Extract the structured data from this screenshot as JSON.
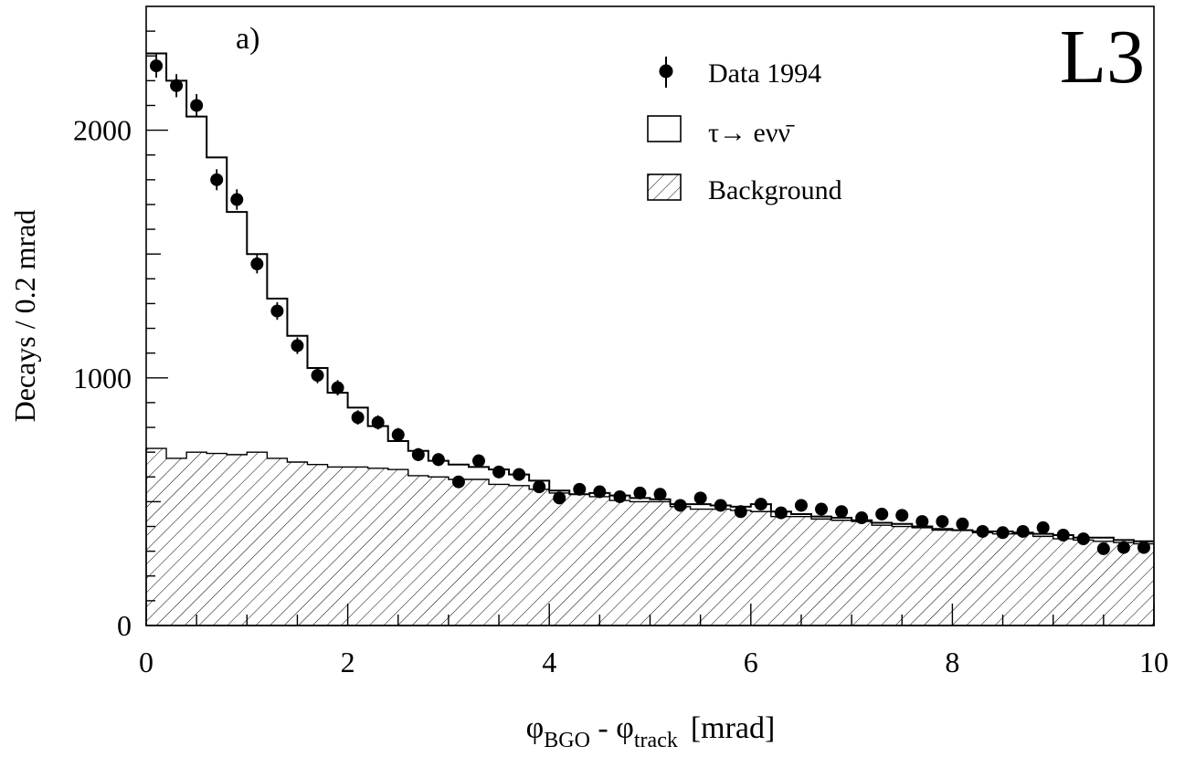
{
  "chart_data": {
    "type": "histogram",
    "panel_label": "a)",
    "experiment_label": "L3",
    "xlabel_main": "φ",
    "xlabel_sub1": "BGO",
    "xlabel_sep": " - φ",
    "xlabel_sub2": "track",
    "xlabel_unit": "[mrad]",
    "ylabel": "Decays / 0.2 mrad",
    "xlim": [
      0,
      10
    ],
    "ylim": [
      0,
      2500
    ],
    "x_ticks": [
      0,
      2,
      4,
      6,
      8,
      10
    ],
    "x_tick_labels": [
      "0",
      "2",
      "4",
      "6",
      "8",
      "10"
    ],
    "y_ticks": [
      0,
      1000,
      2000
    ],
    "y_tick_labels": [
      "0",
      "1000",
      "2000"
    ],
    "bin_width": 0.2,
    "legend": {
      "data": "Data 1994",
      "signal": "τ→ eνν̄",
      "background": "Background"
    },
    "series": [
      {
        "name": "Data 1994",
        "kind": "points",
        "x": [
          0.1,
          0.3,
          0.5,
          0.7,
          0.9,
          1.1,
          1.3,
          1.5,
          1.7,
          1.9,
          2.1,
          2.3,
          2.5,
          2.7,
          2.9,
          3.1,
          3.3,
          3.5,
          3.7,
          3.9,
          4.1,
          4.3,
          4.5,
          4.7,
          4.9,
          5.1,
          5.3,
          5.5,
          5.7,
          5.9,
          6.1,
          6.3,
          6.5,
          6.7,
          6.9,
          7.1,
          7.3,
          7.5,
          7.7,
          7.9,
          8.1,
          8.3,
          8.5,
          8.7,
          8.9,
          9.1,
          9.3,
          9.5,
          9.7,
          9.9
        ],
        "values": [
          2260,
          2180,
          2100,
          1800,
          1720,
          1460,
          1270,
          1130,
          1010,
          960,
          840,
          820,
          770,
          690,
          670,
          580,
          665,
          620,
          610,
          560,
          515,
          550,
          540,
          520,
          535,
          530,
          485,
          515,
          485,
          460,
          490,
          455,
          485,
          470,
          460,
          435,
          450,
          445,
          420,
          420,
          410,
          380,
          375,
          380,
          395,
          365,
          350,
          310,
          315,
          315
        ]
      },
      {
        "name": "τ→ eνν̄",
        "kind": "step",
        "values": [
          2310,
          2200,
          2055,
          1890,
          1670,
          1500,
          1320,
          1170,
          1040,
          940,
          880,
          805,
          745,
          705,
          665,
          650,
          640,
          630,
          610,
          585,
          545,
          530,
          535,
          525,
          515,
          510,
          490,
          490,
          485,
          480,
          490,
          460,
          450,
          440,
          435,
          425,
          415,
          410,
          400,
          390,
          385,
          380,
          380,
          375,
          370,
          365,
          355,
          355,
          345,
          340
        ]
      },
      {
        "name": "Background",
        "kind": "hatched-step",
        "values": [
          715,
          675,
          700,
          695,
          690,
          700,
          675,
          660,
          650,
          640,
          640,
          635,
          630,
          605,
          600,
          590,
          590,
          570,
          565,
          550,
          535,
          530,
          520,
          505,
          500,
          500,
          480,
          470,
          470,
          465,
          460,
          440,
          440,
          430,
          425,
          420,
          405,
          400,
          395,
          385,
          385,
          375,
          370,
          370,
          360,
          350,
          345,
          340,
          335,
          330
        ]
      }
    ]
  }
}
